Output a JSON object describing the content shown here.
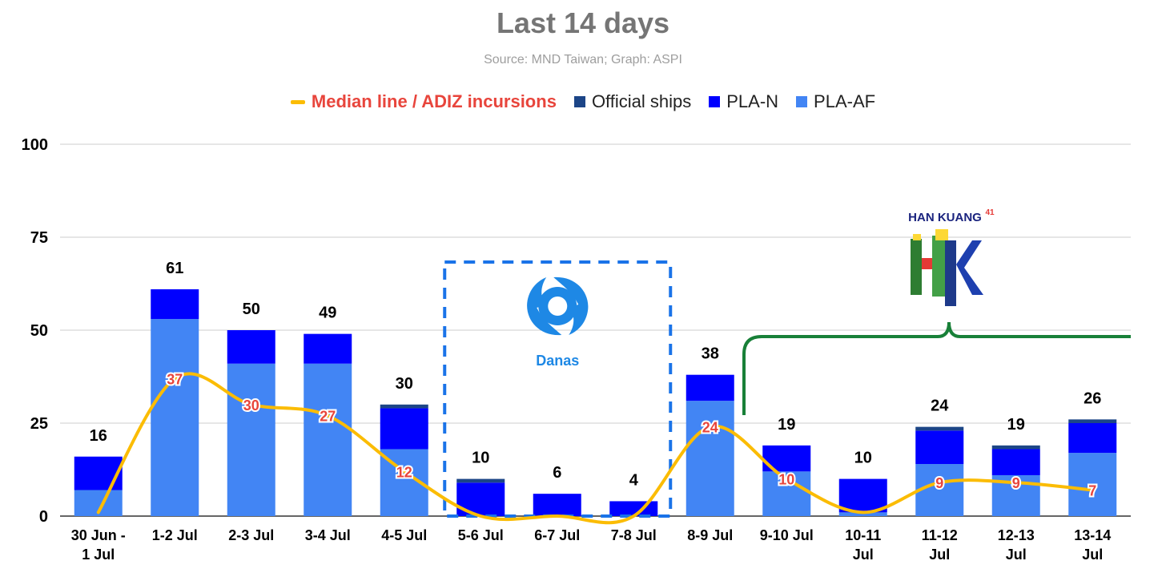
{
  "chart_data": {
    "type": "bar",
    "title": "Last 14 days",
    "subtitle": "Source: MND Taiwan; Graph: ASPI",
    "categories": [
      [
        "30 Jun -",
        "1 Jul"
      ],
      [
        "1-2 Jul"
      ],
      [
        "2-3 Jul"
      ],
      [
        "3-4 Jul"
      ],
      [
        "4-5 Jul"
      ],
      [
        "5-6 Jul"
      ],
      [
        "6-7 Jul"
      ],
      [
        "7-8 Jul"
      ],
      [
        "8-9 Jul"
      ],
      [
        "9-10 Jul"
      ],
      [
        "10-11",
        "Jul"
      ],
      [
        "11-12",
        "Jul"
      ],
      [
        "12-13",
        "Jul"
      ],
      [
        "13-14",
        "Jul"
      ]
    ],
    "stacked": true,
    "series": [
      {
        "name": "PLA-AF",
        "color": "#4285f4",
        "values": [
          7,
          53,
          41,
          41,
          18,
          0,
          0,
          0,
          31,
          12,
          1,
          14,
          11,
          17
        ]
      },
      {
        "name": "PLA-N",
        "color": "#0000ff",
        "values": [
          9,
          8,
          9,
          8,
          11,
          9,
          6,
          4,
          7,
          7,
          9,
          9,
          7,
          8
        ]
      },
      {
        "name": "Official ships",
        "color": "#1c4587",
        "values": [
          0,
          0,
          0,
          0,
          1,
          1,
          0,
          0,
          0,
          0,
          0,
          1,
          1,
          1
        ]
      }
    ],
    "totals": [
      16,
      61,
      50,
      49,
      30,
      10,
      6,
      4,
      38,
      19,
      10,
      24,
      19,
      26
    ],
    "median_line": {
      "name": "Median line / ADIZ incursions",
      "color": "#fbbc04",
      "values": [
        1,
        37,
        30,
        27,
        12,
        0,
        0,
        0,
        24,
        10,
        1,
        9,
        9,
        7
      ],
      "labels": [
        "",
        "37",
        "30",
        "27",
        "12",
        "",
        "",
        "",
        "24",
        "10",
        "",
        "9",
        "9",
        "7"
      ]
    },
    "ylim": [
      0,
      100
    ],
    "yticks": [
      0,
      25,
      50,
      75,
      100
    ],
    "grid": true,
    "legend_position": "top-center",
    "annotations": {
      "typhoon": {
        "label": "Danas",
        "span": [
          "5-6 Jul",
          "7-8 Jul"
        ]
      },
      "exercise": {
        "label": "HAN KUANG",
        "superscript": "41",
        "span": [
          "9-10 Jul",
          "13-14 Jul"
        ]
      }
    }
  }
}
